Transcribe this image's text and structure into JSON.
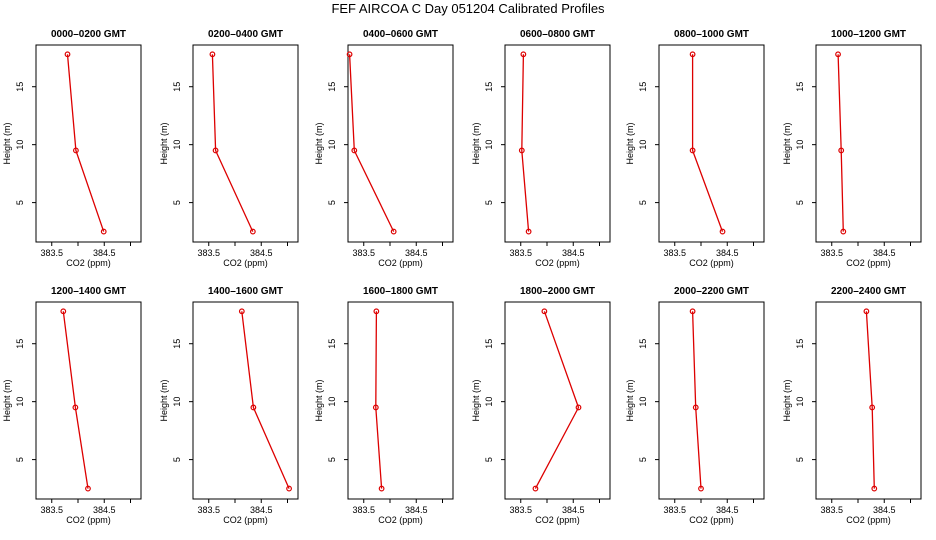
{
  "title": "FEF AIRCOA C  Day 051204  Calibrated Profiles",
  "chart_data": [
    {
      "type": "line",
      "title": "0000–0200 GMT",
      "xlabel": "CO2 (ppm)",
      "ylabel": "Height (m)",
      "xlim": [
        383.2,
        385.2
      ],
      "ylim": [
        1.6,
        18.6
      ],
      "xticks": [
        383.5,
        384.0,
        384.5,
        385.0
      ],
      "xtick_labels": [
        "383.5",
        "",
        "384.5",
        ""
      ],
      "yticks": [
        5,
        10,
        15
      ],
      "ytick_labels": [
        "5",
        "10",
        "15"
      ],
      "series": [
        {
          "x": [
            384.49,
            383.96,
            383.8
          ],
          "y": [
            2.5,
            9.5,
            17.8
          ]
        }
      ]
    },
    {
      "type": "line",
      "title": "0200–0400 GMT",
      "xlabel": "CO2 (ppm)",
      "ylabel": "Height (m)",
      "xlim": [
        383.2,
        385.2
      ],
      "ylim": [
        1.6,
        18.6
      ],
      "xticks": [
        383.5,
        384.0,
        384.5,
        385.0
      ],
      "xtick_labels": [
        "383.5",
        "",
        "384.5",
        ""
      ],
      "yticks": [
        5,
        10,
        15
      ],
      "ytick_labels": [
        "5",
        "10",
        "15"
      ],
      "series": [
        {
          "x": [
            384.34,
            383.63,
            383.57
          ],
          "y": [
            2.5,
            9.5,
            17.8
          ]
        }
      ]
    },
    {
      "type": "line",
      "title": "0400–0600 GMT",
      "xlabel": "CO2 (ppm)",
      "ylabel": "Height (m)",
      "xlim": [
        383.2,
        385.2
      ],
      "ylim": [
        1.6,
        18.6
      ],
      "xticks": [
        383.5,
        384.0,
        384.5,
        385.0
      ],
      "xtick_labels": [
        "383.5",
        "",
        "384.5",
        ""
      ],
      "yticks": [
        5,
        10,
        15
      ],
      "ytick_labels": [
        "5",
        "10",
        "15"
      ],
      "series": [
        {
          "x": [
            384.07,
            383.32,
            383.23
          ],
          "y": [
            2.5,
            9.5,
            17.8
          ]
        }
      ]
    },
    {
      "type": "line",
      "title": "0600–0800 GMT",
      "xlabel": "CO2 (ppm)",
      "ylabel": "Height (m)",
      "xlim": [
        383.2,
        385.2
      ],
      "ylim": [
        1.6,
        18.6
      ],
      "xticks": [
        383.5,
        384.0,
        384.5,
        385.0
      ],
      "xtick_labels": [
        "383.5",
        "",
        "384.5",
        ""
      ],
      "yticks": [
        5,
        10,
        15
      ],
      "ytick_labels": [
        "5",
        "10",
        "15"
      ],
      "series": [
        {
          "x": [
            383.65,
            383.52,
            383.55
          ],
          "y": [
            2.5,
            9.5,
            17.8
          ]
        }
      ]
    },
    {
      "type": "line",
      "title": "0800–1000 GMT",
      "xlabel": "CO2 (ppm)",
      "ylabel": "Height (m)",
      "xlim": [
        383.2,
        385.2
      ],
      "ylim": [
        1.6,
        18.6
      ],
      "xticks": [
        383.5,
        384.0,
        384.5,
        385.0
      ],
      "xtick_labels": [
        "383.5",
        "",
        "384.5",
        ""
      ],
      "yticks": [
        5,
        10,
        15
      ],
      "ytick_labels": [
        "5",
        "10",
        "15"
      ],
      "series": [
        {
          "x": [
            384.41,
            383.84,
            383.84
          ],
          "y": [
            2.5,
            9.5,
            17.8
          ]
        }
      ]
    },
    {
      "type": "line",
      "title": "1000–1200 GMT",
      "xlabel": "CO2 (ppm)",
      "ylabel": "Height (m)",
      "xlim": [
        383.2,
        385.2
      ],
      "ylim": [
        1.6,
        18.6
      ],
      "xticks": [
        383.5,
        384.0,
        384.5,
        385.0
      ],
      "xtick_labels": [
        "383.5",
        "",
        "384.5",
        ""
      ],
      "yticks": [
        5,
        10,
        15
      ],
      "ytick_labels": [
        "5",
        "10",
        "15"
      ],
      "series": [
        {
          "x": [
            383.72,
            383.68,
            383.62
          ],
          "y": [
            2.5,
            9.5,
            17.8
          ]
        }
      ]
    },
    {
      "type": "line",
      "title": "1200–1400 GMT",
      "xlabel": "CO2 (ppm)",
      "ylabel": "Height (m)",
      "xlim": [
        383.2,
        385.2
      ],
      "ylim": [
        1.6,
        18.6
      ],
      "xticks": [
        383.5,
        384.0,
        384.5,
        385.0
      ],
      "xtick_labels": [
        "383.5",
        "",
        "384.5",
        ""
      ],
      "yticks": [
        5,
        10,
        15
      ],
      "ytick_labels": [
        "5",
        "10",
        "15"
      ],
      "series": [
        {
          "x": [
            384.19,
            383.95,
            383.72
          ],
          "y": [
            2.5,
            9.5,
            17.8
          ]
        }
      ]
    },
    {
      "type": "line",
      "title": "1400–1600 GMT",
      "xlabel": "CO2 (ppm)",
      "ylabel": "Height (m)",
      "xlim": [
        383.2,
        385.2
      ],
      "ylim": [
        1.6,
        18.6
      ],
      "xticks": [
        383.5,
        384.0,
        384.5,
        385.0
      ],
      "xtick_labels": [
        "383.5",
        "",
        "384.5",
        ""
      ],
      "yticks": [
        5,
        10,
        15
      ],
      "ytick_labels": [
        "5",
        "10",
        "15"
      ],
      "series": [
        {
          "x": [
            385.03,
            384.35,
            384.13
          ],
          "y": [
            2.5,
            9.5,
            17.8
          ]
        }
      ]
    },
    {
      "type": "line",
      "title": "1600–1800 GMT",
      "xlabel": "CO2 (ppm)",
      "ylabel": "Height (m)",
      "xlim": [
        383.2,
        385.2
      ],
      "ylim": [
        1.6,
        18.6
      ],
      "xticks": [
        383.5,
        384.0,
        384.5,
        385.0
      ],
      "xtick_labels": [
        "383.5",
        "",
        "384.5",
        ""
      ],
      "yticks": [
        5,
        10,
        15
      ],
      "ytick_labels": [
        "5",
        "10",
        "15"
      ],
      "series": [
        {
          "x": [
            383.84,
            383.73,
            383.74
          ],
          "y": [
            2.5,
            9.5,
            17.8
          ]
        }
      ]
    },
    {
      "type": "line",
      "title": "1800–2000 GMT",
      "xlabel": "CO2 (ppm)",
      "ylabel": "Height (m)",
      "xlim": [
        383.2,
        385.2
      ],
      "ylim": [
        1.6,
        18.6
      ],
      "xticks": [
        383.5,
        384.0,
        384.5,
        385.0
      ],
      "xtick_labels": [
        "383.5",
        "",
        "384.5",
        ""
      ],
      "yticks": [
        5,
        10,
        15
      ],
      "ytick_labels": [
        "5",
        "10",
        "15"
      ],
      "series": [
        {
          "x": [
            383.78,
            384.6,
            383.95
          ],
          "y": [
            2.5,
            9.5,
            17.8
          ]
        }
      ]
    },
    {
      "type": "line",
      "title": "2000–2200 GMT",
      "xlabel": "CO2 (ppm)",
      "ylabel": "Height (m)",
      "xlim": [
        383.2,
        385.2
      ],
      "ylim": [
        1.6,
        18.6
      ],
      "xticks": [
        383.5,
        384.0,
        384.5,
        385.0
      ],
      "xtick_labels": [
        "383.5",
        "",
        "384.5",
        ""
      ],
      "yticks": [
        5,
        10,
        15
      ],
      "ytick_labels": [
        "5",
        "10",
        "15"
      ],
      "series": [
        {
          "x": [
            384.0,
            383.9,
            383.84
          ],
          "y": [
            2.5,
            9.5,
            17.8
          ]
        }
      ]
    },
    {
      "type": "line",
      "title": "2200–2400 GMT",
      "xlabel": "CO2 (ppm)",
      "ylabel": "Height (m)",
      "xlim": [
        383.2,
        385.2
      ],
      "ylim": [
        1.6,
        18.6
      ],
      "xticks": [
        383.5,
        384.0,
        384.5,
        385.0
      ],
      "xtick_labels": [
        "383.5",
        "",
        "384.5",
        ""
      ],
      "yticks": [
        5,
        10,
        15
      ],
      "ytick_labels": [
        "5",
        "10",
        "15"
      ],
      "series": [
        {
          "x": [
            384.31,
            384.27,
            384.16
          ],
          "y": [
            2.5,
            9.5,
            17.8
          ]
        }
      ]
    }
  ],
  "colors": {
    "series": "#dd0000",
    "axes": "#000000",
    "background": "#ffffff"
  }
}
